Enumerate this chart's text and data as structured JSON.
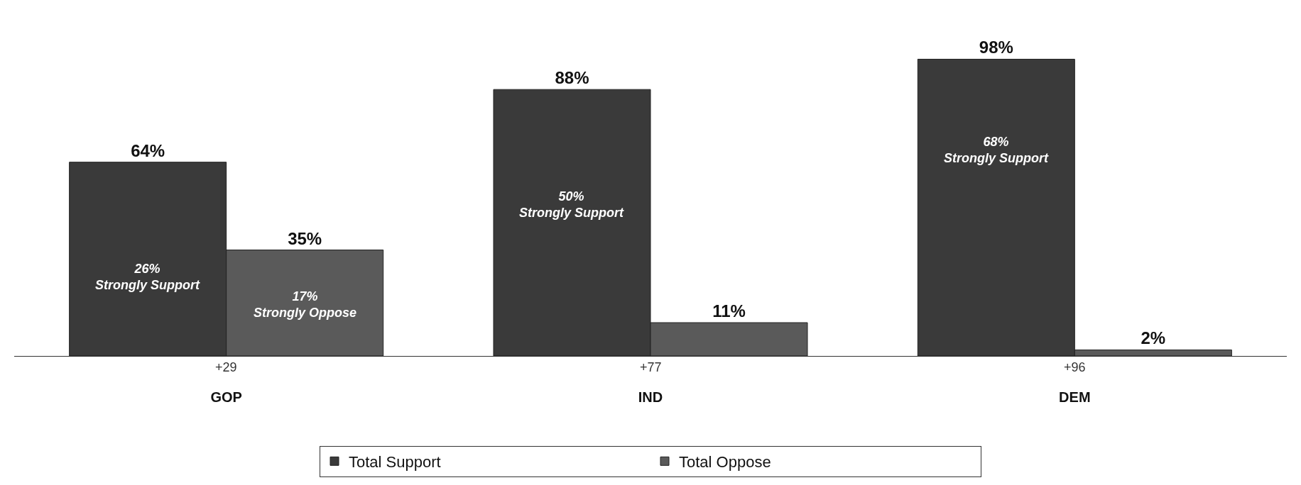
{
  "chart_data": {
    "type": "bar",
    "categories": [
      "GOP",
      "IND",
      "DEM"
    ],
    "series": [
      {
        "name": "Total Support",
        "color": "#3a3a3a",
        "values": [
          64,
          88,
          98
        ],
        "value_labels": [
          "64%",
          "88%",
          "98%"
        ]
      },
      {
        "name": "Total Oppose",
        "color": "#5a5a5a",
        "values": [
          35,
          11,
          2
        ],
        "value_labels": [
          "35%",
          "11%",
          "2%"
        ]
      }
    ],
    "annotations": [
      {
        "text": "26%\nStrongly Support",
        "x": "GOP",
        "y": 26
      },
      {
        "text": "17%\nStrongly Oppose",
        "x": "GOP",
        "y": 17
      },
      {
        "text": "50%\nStrongly Support",
        "x": "IND",
        "y": 50
      },
      {
        "text": "68%\nStrongly Support",
        "x": "DEM",
        "y": 68
      },
      "+29",
      "+77",
      "+96"
    ],
    "legend": "bottom"
  }
}
